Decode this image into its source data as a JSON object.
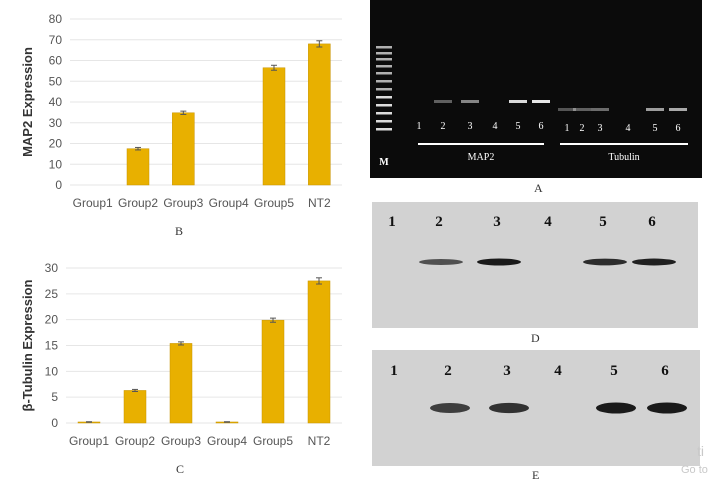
{
  "colors": {
    "bar": "#e8b000",
    "bar_edge": "#c79400",
    "grid": "#e6e6e6",
    "axis_text": "#555555",
    "gel_bg": "#0b0b0b",
    "blot_bg": "#d2d2d2"
  },
  "chart_data": [
    {
      "type": "bar",
      "panel": "B",
      "title": "",
      "xlabel": "",
      "ylabel": "MAP2 Expression",
      "categories": [
        "Group1",
        "Group2",
        "Group3",
        "Group4",
        "Group5",
        "NT2"
      ],
      "values": [
        0,
        17.5,
        34.8,
        0,
        56.5,
        68
      ],
      "errors": [
        0,
        0.6,
        0.8,
        0,
        1.2,
        1.5
      ],
      "ylim": [
        0,
        80
      ],
      "yticks": [
        "0",
        "10",
        "20",
        "30",
        "40",
        "50",
        "60",
        "70",
        "80"
      ],
      "grid": true
    },
    {
      "type": "bar",
      "panel": "C",
      "title": "",
      "xlabel": "",
      "ylabel": "β-Tubulin Expression",
      "categories": [
        "Group1",
        "Group2",
        "Group3",
        "Group4",
        "Group5",
        "NT2"
      ],
      "values": [
        0.2,
        6.3,
        15.4,
        0.2,
        19.9,
        27.5
      ],
      "errors": [
        0.05,
        0.2,
        0.3,
        0.05,
        0.4,
        0.6
      ],
      "ylim": [
        0,
        30
      ],
      "yticks": [
        "0",
        "5",
        "10",
        "15",
        "20",
        "25",
        "30"
      ],
      "grid": true
    }
  ],
  "captions": {
    "b": "B",
    "c": "C",
    "a": "A",
    "d": "D",
    "e": "E"
  },
  "gel": {
    "marker": "M",
    "lanes_map2": [
      "1",
      "2",
      "3",
      "4",
      "5",
      "6"
    ],
    "lanes_tubulin": [
      "1",
      "2",
      "3",
      "4",
      "5",
      "6"
    ],
    "label_map2": "MAP2",
    "label_tubulin": "Tubulin",
    "band_intensity_map2": [
      0,
      0.35,
      0.5,
      0,
      0.85,
      0.9
    ],
    "band_intensity_tubulin": [
      0.3,
      0.35,
      0.4,
      0,
      0.6,
      0.65
    ]
  },
  "blot_d": {
    "lanes": [
      "1",
      "2",
      "3",
      "4",
      "5",
      "6"
    ],
    "band_intensity": [
      0,
      0.55,
      1.0,
      0,
      0.85,
      0.95
    ]
  },
  "blot_e": {
    "lanes": [
      "1",
      "2",
      "3",
      "4",
      "5",
      "6"
    ],
    "band_intensity": [
      0,
      0.7,
      0.8,
      0,
      1.0,
      1.0
    ]
  },
  "watermark": {
    "line1": "ti",
    "line2": "Go to"
  }
}
